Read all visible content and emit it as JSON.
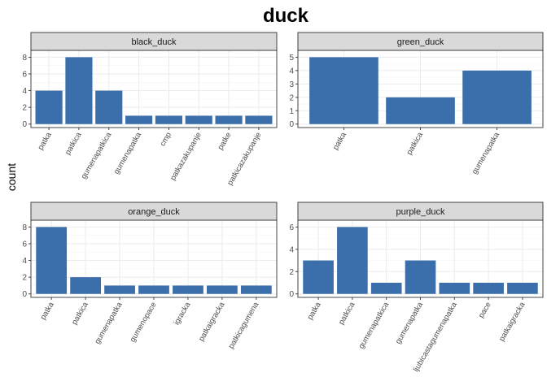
{
  "title": "duck",
  "ylabel": "count",
  "colors": {
    "bar": "#3a6fab",
    "strip_fill": "#d9d9d9",
    "strip_border": "#333333",
    "panel_border": "#333333",
    "grid_major": "#ebebeb",
    "grid_minor": "#f5f5f5",
    "tick_text": "#4d4d4d"
  },
  "chart_data": [
    {
      "type": "bar",
      "panel": "black_duck",
      "categories": [
        "patka",
        "patkica",
        "gumenapatkica",
        "gumenapatka",
        "cmp",
        "patkazakupanje",
        "patke",
        "patkicazakupanje"
      ],
      "values": [
        4,
        8,
        4,
        1,
        1,
        1,
        1,
        1
      ],
      "ylim": [
        0,
        8.4
      ],
      "yticks": [
        0,
        2,
        4,
        6,
        8
      ]
    },
    {
      "type": "bar",
      "panel": "green_duck",
      "categories": [
        "patka",
        "patkica",
        "gumenapatka"
      ],
      "values": [
        5,
        2,
        4
      ],
      "ylim": [
        0,
        5.25
      ],
      "yticks": [
        0,
        1,
        2,
        3,
        4,
        5
      ]
    },
    {
      "type": "bar",
      "panel": "orange_duck",
      "categories": [
        "patka",
        "patkica",
        "gumenapatka",
        "gumenopace",
        "igracka",
        "patkaigracka",
        "patkicagumena"
      ],
      "values": [
        8,
        2,
        1,
        1,
        1,
        1,
        1
      ],
      "ylim": [
        0,
        8.4
      ],
      "yticks": [
        0,
        2,
        4,
        6,
        8
      ]
    },
    {
      "type": "bar",
      "panel": "purple_duck",
      "categories": [
        "patka",
        "patkica",
        "gumenapatkica",
        "gumenapatka",
        "ljubicastagumenapatka",
        "pace",
        "patkaigracka"
      ],
      "values": [
        3,
        6,
        1,
        3,
        1,
        1,
        1
      ],
      "ylim": [
        0,
        6.3
      ],
      "yticks": [
        0,
        2,
        4,
        6
      ]
    }
  ]
}
